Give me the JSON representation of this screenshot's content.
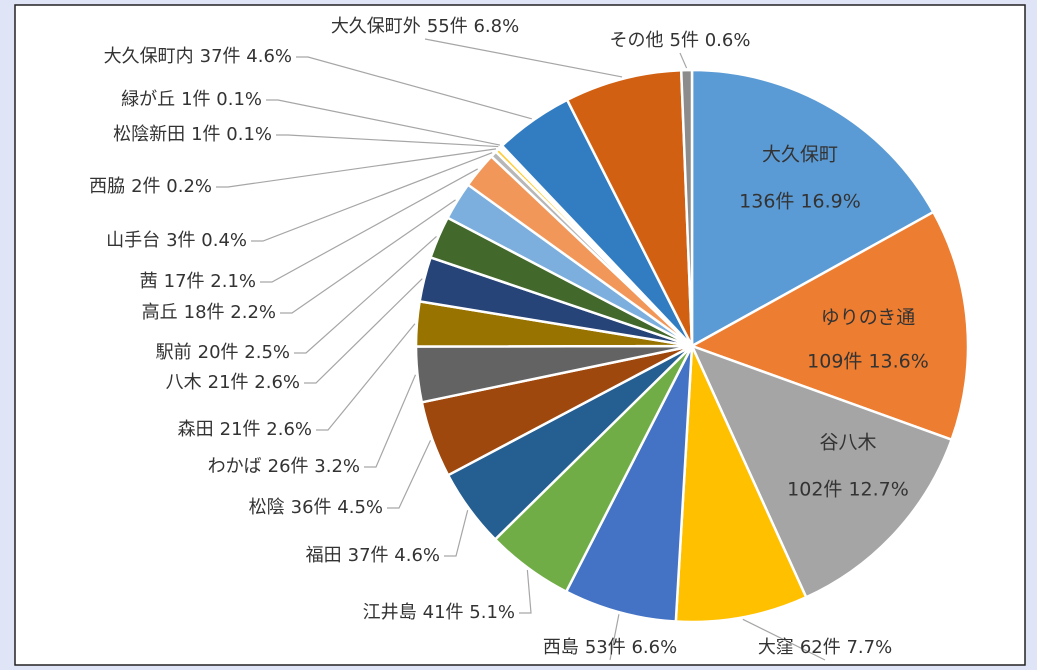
{
  "chart_data": {
    "type": "pie",
    "categories": [
      "大久保町",
      "ゆりのき通",
      "谷八木",
      "大窪",
      "西島",
      "江井島",
      "福田",
      "松陰",
      "わかば",
      "森田",
      "八木",
      "駅前",
      "高丘",
      "茜",
      "山手台",
      "西脇",
      "松陰新田",
      "緑が丘",
      "大久保町内",
      "大久保町外",
      "その他"
    ],
    "values": [
      136,
      109,
      102,
      62,
      53,
      41,
      37,
      36,
      26,
      21,
      21,
      20,
      18,
      17,
      3,
      2,
      1,
      1,
      37,
      55,
      5
    ],
    "value_labels": [
      "136件 16.9%",
      "109件 13.6%",
      "102件 12.7%",
      "62件 7.7%",
      "53件 6.6%",
      "41件 5.1%",
      "37件 4.6%",
      "36件 4.5%",
      "26件 3.2%",
      "21件 2.6%",
      "21件 2.6%",
      "20件 2.5%",
      "18件 2.2%",
      "17件 2.1%",
      "3件 0.4%",
      "2件 0.2%",
      "1件 0.1%",
      "1件 0.1%",
      "37件 4.6%",
      "55件 6.8%",
      "5件 0.6%"
    ],
    "colors": [
      "#5b9bd5",
      "#ed7d31",
      "#a5a5a5",
      "#ffc000",
      "#4472c4",
      "#70ad47",
      "#255e91",
      "#9e480e",
      "#636363",
      "#997300",
      "#264478",
      "#43682b",
      "#7cafdd",
      "#f1975a",
      "#b7b7b7",
      "#ffcd33",
      "#698ed0",
      "#8cc168",
      "#327dc2",
      "#d26012",
      "#8c8c8c"
    ]
  }
}
